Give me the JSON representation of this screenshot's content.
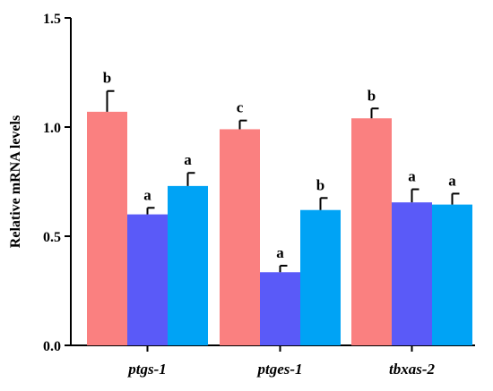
{
  "chart_data": {
    "type": "bar",
    "ylabel": "Relative mRNA levels",
    "ylim": [
      0,
      1.5
    ],
    "yticks": [
      "0.0",
      "0.5",
      "1.0",
      "1.5"
    ],
    "categories": [
      "ptgs-1",
      "ptges-1",
      "tbxas-2"
    ],
    "colors": [
      "#fa8080",
      "#5a5af8",
      "#00a3f5"
    ],
    "series": [
      {
        "values": [
          1.07,
          0.99,
          1.04
        ],
        "errors": [
          0.095,
          0.04,
          0.045
        ],
        "significance": [
          "b",
          "c",
          "b"
        ]
      },
      {
        "values": [
          0.6,
          0.335,
          0.655
        ],
        "errors": [
          0.03,
          0.03,
          0.06
        ],
        "significance": [
          "a",
          "a",
          "a"
        ]
      },
      {
        "values": [
          0.73,
          0.62,
          0.645
        ],
        "errors": [
          0.06,
          0.055,
          0.05
        ],
        "significance": [
          "a",
          "b",
          "a"
        ]
      }
    ],
    "grid": false
  }
}
